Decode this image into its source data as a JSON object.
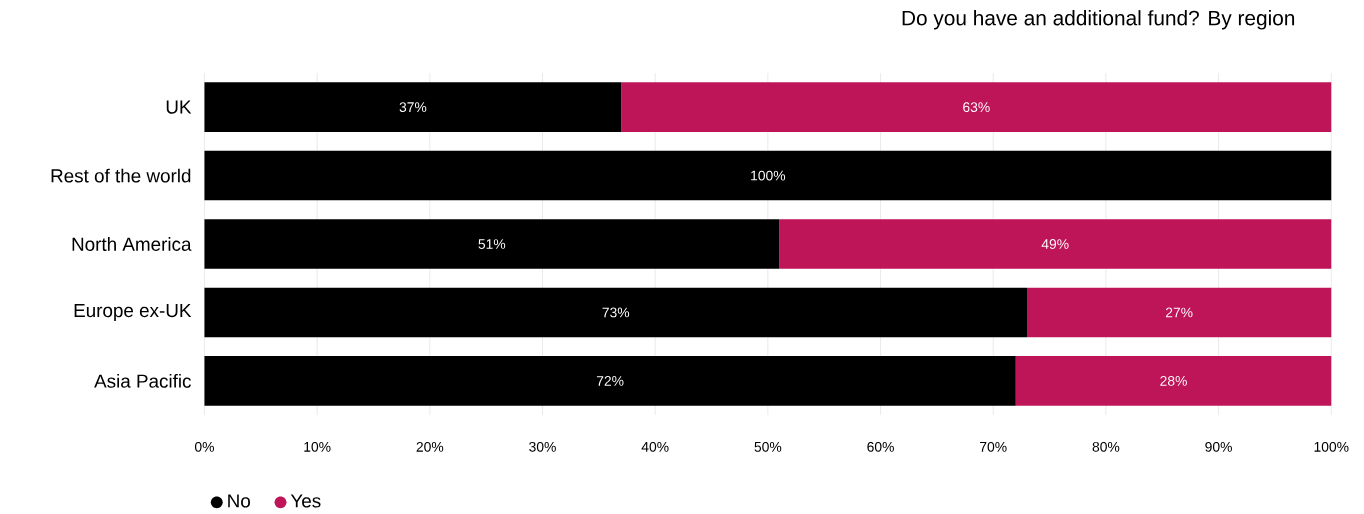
{
  "chart_data": {
    "type": "bar",
    "orientation": "horizontal",
    "stacked": true,
    "title": "Do you have an additional fund? By region",
    "categories": [
      "UK",
      "Rest of the world",
      "North America",
      "Europe ex-UK",
      "Asia Pacific"
    ],
    "series": [
      {
        "name": "No",
        "color": "#000000",
        "values": [
          37,
          100,
          51,
          73,
          72
        ],
        "value_labels": [
          "37%",
          "100%",
          "51%",
          "73%",
          "72%"
        ]
      },
      {
        "name": "Yes",
        "color": "#be1558",
        "values": [
          63,
          0,
          49,
          27,
          28
        ],
        "value_labels": [
          "63%",
          null,
          "49%",
          "27%",
          "28%"
        ]
      }
    ],
    "xlim": [
      0,
      100
    ],
    "xticks": [
      {
        "value": 0,
        "label": "0%"
      },
      {
        "value": 10,
        "label": "10%"
      },
      {
        "value": 20,
        "label": "20%"
      },
      {
        "value": 30,
        "label": "30%"
      },
      {
        "value": 40,
        "label": "40%"
      },
      {
        "value": 50,
        "label": "50%"
      },
      {
        "value": 60,
        "label": "60%"
      },
      {
        "value": 70,
        "label": "70%"
      },
      {
        "value": 80,
        "label": "80%"
      },
      {
        "value": 90,
        "label": "90%"
      },
      {
        "value": 100,
        "label": "100%"
      }
    ],
    "grid": "x",
    "legend": "bottom left"
  }
}
